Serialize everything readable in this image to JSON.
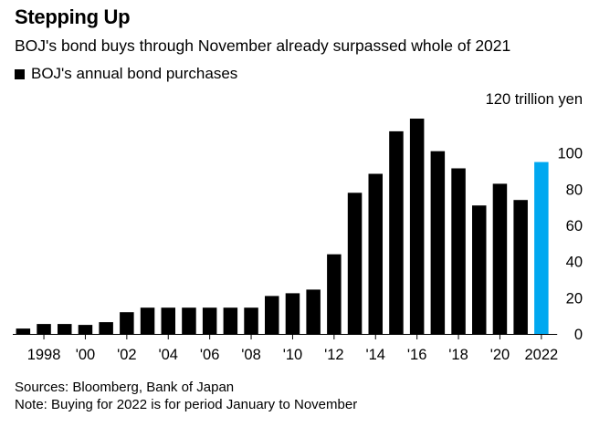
{
  "header": {
    "title": "Stepping Up",
    "subtitle": "BOJ's bond buys through November already surpassed whole of 2021",
    "legend_label": "BOJ's annual bond purchases"
  },
  "footer": {
    "sources": "Sources: Bloomberg, Bank of Japan",
    "note": "Note: Buying for 2022 is for period January to November"
  },
  "colors": {
    "bar": "#000000",
    "highlight": "#00a8f0",
    "axis": "#000000"
  },
  "chart_data": {
    "type": "bar",
    "title": "Stepping Up",
    "ylabel": "trillion yen",
    "y_unit_label": "120 trillion yen",
    "ylim": [
      0,
      120
    ],
    "y_ticks": [
      0,
      20,
      40,
      60,
      80,
      100
    ],
    "categories": [
      "1997",
      "1998",
      "1999",
      "2000",
      "2001",
      "2002",
      "2003",
      "2004",
      "2005",
      "2006",
      "2007",
      "2008",
      "2009",
      "2010",
      "2011",
      "2012",
      "2013",
      "2014",
      "2015",
      "2016",
      "2017",
      "2018",
      "2019",
      "2020",
      "2021",
      "2022"
    ],
    "values": [
      3,
      5.5,
      5.5,
      5,
      6.5,
      12,
      14.5,
      14.5,
      14.5,
      14.5,
      14.5,
      14.5,
      21,
      22.5,
      24.5,
      44,
      78,
      88.5,
      112,
      119,
      101,
      91.5,
      71,
      83,
      74,
      95
    ],
    "highlight_index": 25,
    "x_tick_labels": [
      {
        "category": "1998",
        "label": "1998"
      },
      {
        "category": "2000",
        "label": "'00"
      },
      {
        "category": "2002",
        "label": "'02"
      },
      {
        "category": "2004",
        "label": "'04"
      },
      {
        "category": "2006",
        "label": "'06"
      },
      {
        "category": "2008",
        "label": "'08"
      },
      {
        "category": "2010",
        "label": "'10"
      },
      {
        "category": "2012",
        "label": "'12"
      },
      {
        "category": "2014",
        "label": "'14"
      },
      {
        "category": "2016",
        "label": "'16"
      },
      {
        "category": "2018",
        "label": "'18"
      },
      {
        "category": "2020",
        "label": "'20"
      },
      {
        "category": "2022",
        "label": "2022"
      }
    ],
    "legend": [
      "BOJ's annual bond purchases"
    ],
    "grid": false
  }
}
